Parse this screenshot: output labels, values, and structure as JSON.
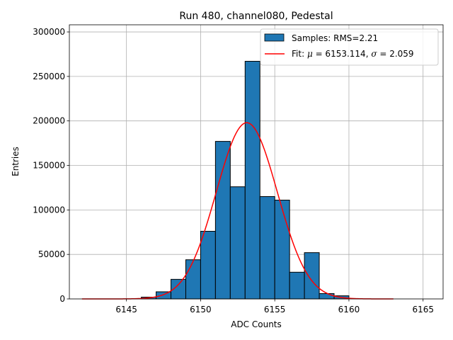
{
  "chart_data": {
    "type": "bar",
    "title": "Run 480, channel080, Pedestal",
    "xlabel": "ADC Counts",
    "ylabel": "Entries",
    "xlim": [
      6141.15,
      6166.35
    ],
    "ylim": [
      0,
      308000
    ],
    "xticks": [
      6145,
      6150,
      6155,
      6160,
      6165
    ],
    "yticks": [
      0,
      50000,
      100000,
      150000,
      200000,
      250000,
      300000
    ],
    "grid": true,
    "legend_position": "top-right",
    "bin_width": 1,
    "bins": [
      {
        "x": 6146.0,
        "value": 2000
      },
      {
        "x": 6147.0,
        "value": 8000
      },
      {
        "x": 6148.0,
        "value": 22000
      },
      {
        "x": 6149.0,
        "value": 44000
      },
      {
        "x": 6150.0,
        "value": 76000
      },
      {
        "x": 6151.0,
        "value": 177000
      },
      {
        "x": 6152.0,
        "value": 126000
      },
      {
        "x": 6153.0,
        "value": 267000
      },
      {
        "x": 6154.0,
        "value": 115000
      },
      {
        "x": 6155.0,
        "value": 111000
      },
      {
        "x": 6156.0,
        "value": 30000
      },
      {
        "x": 6157.0,
        "value": 52000
      },
      {
        "x": 6158.0,
        "value": 6000
      },
      {
        "x": 6159.0,
        "value": 3500
      }
    ],
    "series": [
      {
        "name": "Samples: RMS=2.21",
        "type": "histogram",
        "color": "#1f77b4",
        "edgecolor": "#000000"
      },
      {
        "name": "Fit",
        "type": "line",
        "color": "#ff0000",
        "mu": 6153.114,
        "sigma": 2.059,
        "amplitude": 198000,
        "x_range": [
          6142,
          6163
        ]
      }
    ],
    "legend": {
      "hist_label": "Samples: RMS=2.21",
      "fit_prefix": "Fit: ",
      "mu_symbol": "μ",
      "mu_text": " = 6153.114, ",
      "sigma_symbol": "σ",
      "sigma_text": " = 2.059"
    }
  }
}
